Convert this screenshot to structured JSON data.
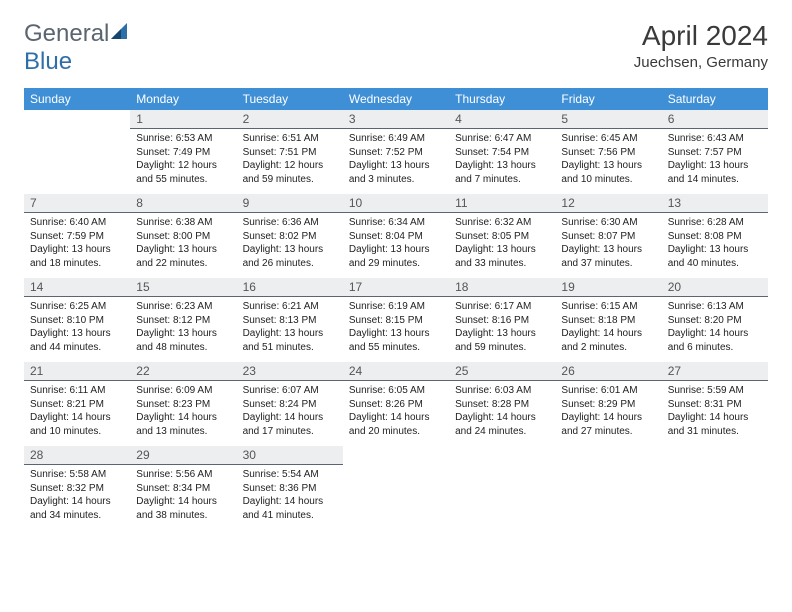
{
  "brand": {
    "part1": "General",
    "part2": "Blue"
  },
  "title": "April 2024",
  "location": "Juechsen, Germany",
  "colors": {
    "header_bg": "#3f8fd6",
    "header_text": "#ffffff",
    "daynum_bg": "#eceeef",
    "daynum_border": "#5a6570",
    "text": "#222222",
    "logo_gray": "#5a6570",
    "logo_blue": "#2f6fa8"
  },
  "weekdays": [
    "Sunday",
    "Monday",
    "Tuesday",
    "Wednesday",
    "Thursday",
    "Friday",
    "Saturday"
  ],
  "weeks": [
    [
      {
        "empty": true
      },
      {
        "n": "1",
        "sunrise": "6:53 AM",
        "sunset": "7:49 PM",
        "day_h": "12",
        "day_m": "55"
      },
      {
        "n": "2",
        "sunrise": "6:51 AM",
        "sunset": "7:51 PM",
        "day_h": "12",
        "day_m": "59"
      },
      {
        "n": "3",
        "sunrise": "6:49 AM",
        "sunset": "7:52 PM",
        "day_h": "13",
        "day_m": "3"
      },
      {
        "n": "4",
        "sunrise": "6:47 AM",
        "sunset": "7:54 PM",
        "day_h": "13",
        "day_m": "7"
      },
      {
        "n": "5",
        "sunrise": "6:45 AM",
        "sunset": "7:56 PM",
        "day_h": "13",
        "day_m": "10"
      },
      {
        "n": "6",
        "sunrise": "6:43 AM",
        "sunset": "7:57 PM",
        "day_h": "13",
        "day_m": "14"
      }
    ],
    [
      {
        "n": "7",
        "sunrise": "6:40 AM",
        "sunset": "7:59 PM",
        "day_h": "13",
        "day_m": "18"
      },
      {
        "n": "8",
        "sunrise": "6:38 AM",
        "sunset": "8:00 PM",
        "day_h": "13",
        "day_m": "22"
      },
      {
        "n": "9",
        "sunrise": "6:36 AM",
        "sunset": "8:02 PM",
        "day_h": "13",
        "day_m": "26"
      },
      {
        "n": "10",
        "sunrise": "6:34 AM",
        "sunset": "8:04 PM",
        "day_h": "13",
        "day_m": "29"
      },
      {
        "n": "11",
        "sunrise": "6:32 AM",
        "sunset": "8:05 PM",
        "day_h": "13",
        "day_m": "33"
      },
      {
        "n": "12",
        "sunrise": "6:30 AM",
        "sunset": "8:07 PM",
        "day_h": "13",
        "day_m": "37"
      },
      {
        "n": "13",
        "sunrise": "6:28 AM",
        "sunset": "8:08 PM",
        "day_h": "13",
        "day_m": "40"
      }
    ],
    [
      {
        "n": "14",
        "sunrise": "6:25 AM",
        "sunset": "8:10 PM",
        "day_h": "13",
        "day_m": "44"
      },
      {
        "n": "15",
        "sunrise": "6:23 AM",
        "sunset": "8:12 PM",
        "day_h": "13",
        "day_m": "48"
      },
      {
        "n": "16",
        "sunrise": "6:21 AM",
        "sunset": "8:13 PM",
        "day_h": "13",
        "day_m": "51"
      },
      {
        "n": "17",
        "sunrise": "6:19 AM",
        "sunset": "8:15 PM",
        "day_h": "13",
        "day_m": "55"
      },
      {
        "n": "18",
        "sunrise": "6:17 AM",
        "sunset": "8:16 PM",
        "day_h": "13",
        "day_m": "59"
      },
      {
        "n": "19",
        "sunrise": "6:15 AM",
        "sunset": "8:18 PM",
        "day_h": "14",
        "day_m": "2"
      },
      {
        "n": "20",
        "sunrise": "6:13 AM",
        "sunset": "8:20 PM",
        "day_h": "14",
        "day_m": "6"
      }
    ],
    [
      {
        "n": "21",
        "sunrise": "6:11 AM",
        "sunset": "8:21 PM",
        "day_h": "14",
        "day_m": "10"
      },
      {
        "n": "22",
        "sunrise": "6:09 AM",
        "sunset": "8:23 PM",
        "day_h": "14",
        "day_m": "13"
      },
      {
        "n": "23",
        "sunrise": "6:07 AM",
        "sunset": "8:24 PM",
        "day_h": "14",
        "day_m": "17"
      },
      {
        "n": "24",
        "sunrise": "6:05 AM",
        "sunset": "8:26 PM",
        "day_h": "14",
        "day_m": "20"
      },
      {
        "n": "25",
        "sunrise": "6:03 AM",
        "sunset": "8:28 PM",
        "day_h": "14",
        "day_m": "24"
      },
      {
        "n": "26",
        "sunrise": "6:01 AM",
        "sunset": "8:29 PM",
        "day_h": "14",
        "day_m": "27"
      },
      {
        "n": "27",
        "sunrise": "5:59 AM",
        "sunset": "8:31 PM",
        "day_h": "14",
        "day_m": "31"
      }
    ],
    [
      {
        "n": "28",
        "sunrise": "5:58 AM",
        "sunset": "8:32 PM",
        "day_h": "14",
        "day_m": "34"
      },
      {
        "n": "29",
        "sunrise": "5:56 AM",
        "sunset": "8:34 PM",
        "day_h": "14",
        "day_m": "38"
      },
      {
        "n": "30",
        "sunrise": "5:54 AM",
        "sunset": "8:36 PM",
        "day_h": "14",
        "day_m": "41"
      },
      {
        "empty": true
      },
      {
        "empty": true
      },
      {
        "empty": true
      },
      {
        "empty": true
      }
    ]
  ],
  "labels": {
    "sunrise_prefix": "Sunrise: ",
    "sunset_prefix": "Sunset: ",
    "daylight_prefix": "Daylight: ",
    "hours_word": " hours",
    "and_word": "and ",
    "minutes_word": " minutes."
  }
}
